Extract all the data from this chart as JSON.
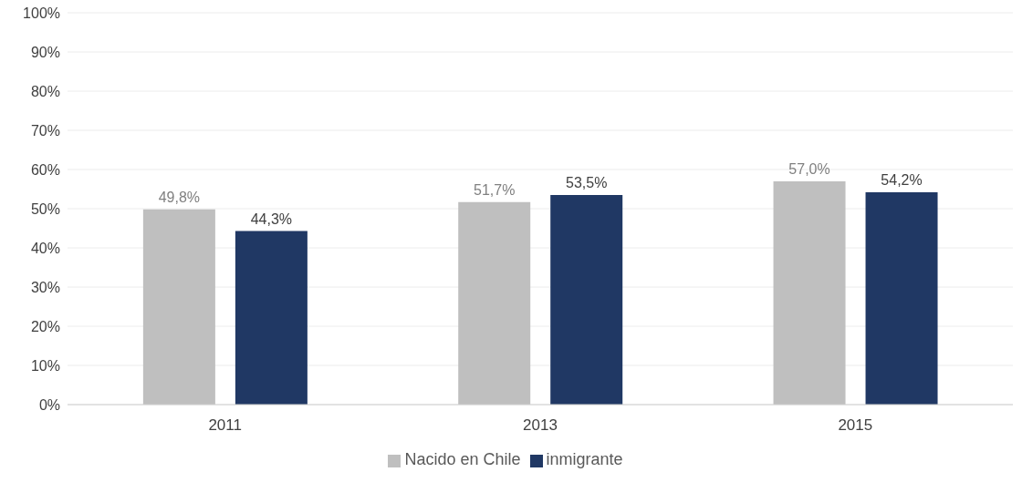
{
  "chart_data": {
    "type": "bar",
    "categories": [
      "2011",
      "2013",
      "2015"
    ],
    "series": [
      {
        "name": "Nacido en Chile",
        "color": "#bfbfbf",
        "values": [
          49.8,
          51.7,
          57.0
        ],
        "value_labels": [
          "49,8%",
          "51,7%",
          "57,0%"
        ]
      },
      {
        "name": "inmigrante",
        "color": "#203864",
        "values": [
          44.3,
          53.5,
          54.2
        ],
        "value_labels": [
          "44,3%",
          "53,5%",
          "54,2%"
        ]
      }
    ],
    "ylim": [
      0,
      100
    ],
    "yticks": [
      {
        "value": 0,
        "label": "0%"
      },
      {
        "value": 10,
        "label": "10%"
      },
      {
        "value": 20,
        "label": "20%"
      },
      {
        "value": 30,
        "label": "30%"
      },
      {
        "value": 40,
        "label": "40%"
      },
      {
        "value": 50,
        "label": "50%"
      },
      {
        "value": 60,
        "label": "60%"
      },
      {
        "value": 70,
        "label": "70%"
      },
      {
        "value": 80,
        "label": "80%"
      },
      {
        "value": 90,
        "label": "90%"
      },
      {
        "value": 100,
        "label": "100%"
      }
    ],
    "grid": "y",
    "legend": "bottom"
  }
}
